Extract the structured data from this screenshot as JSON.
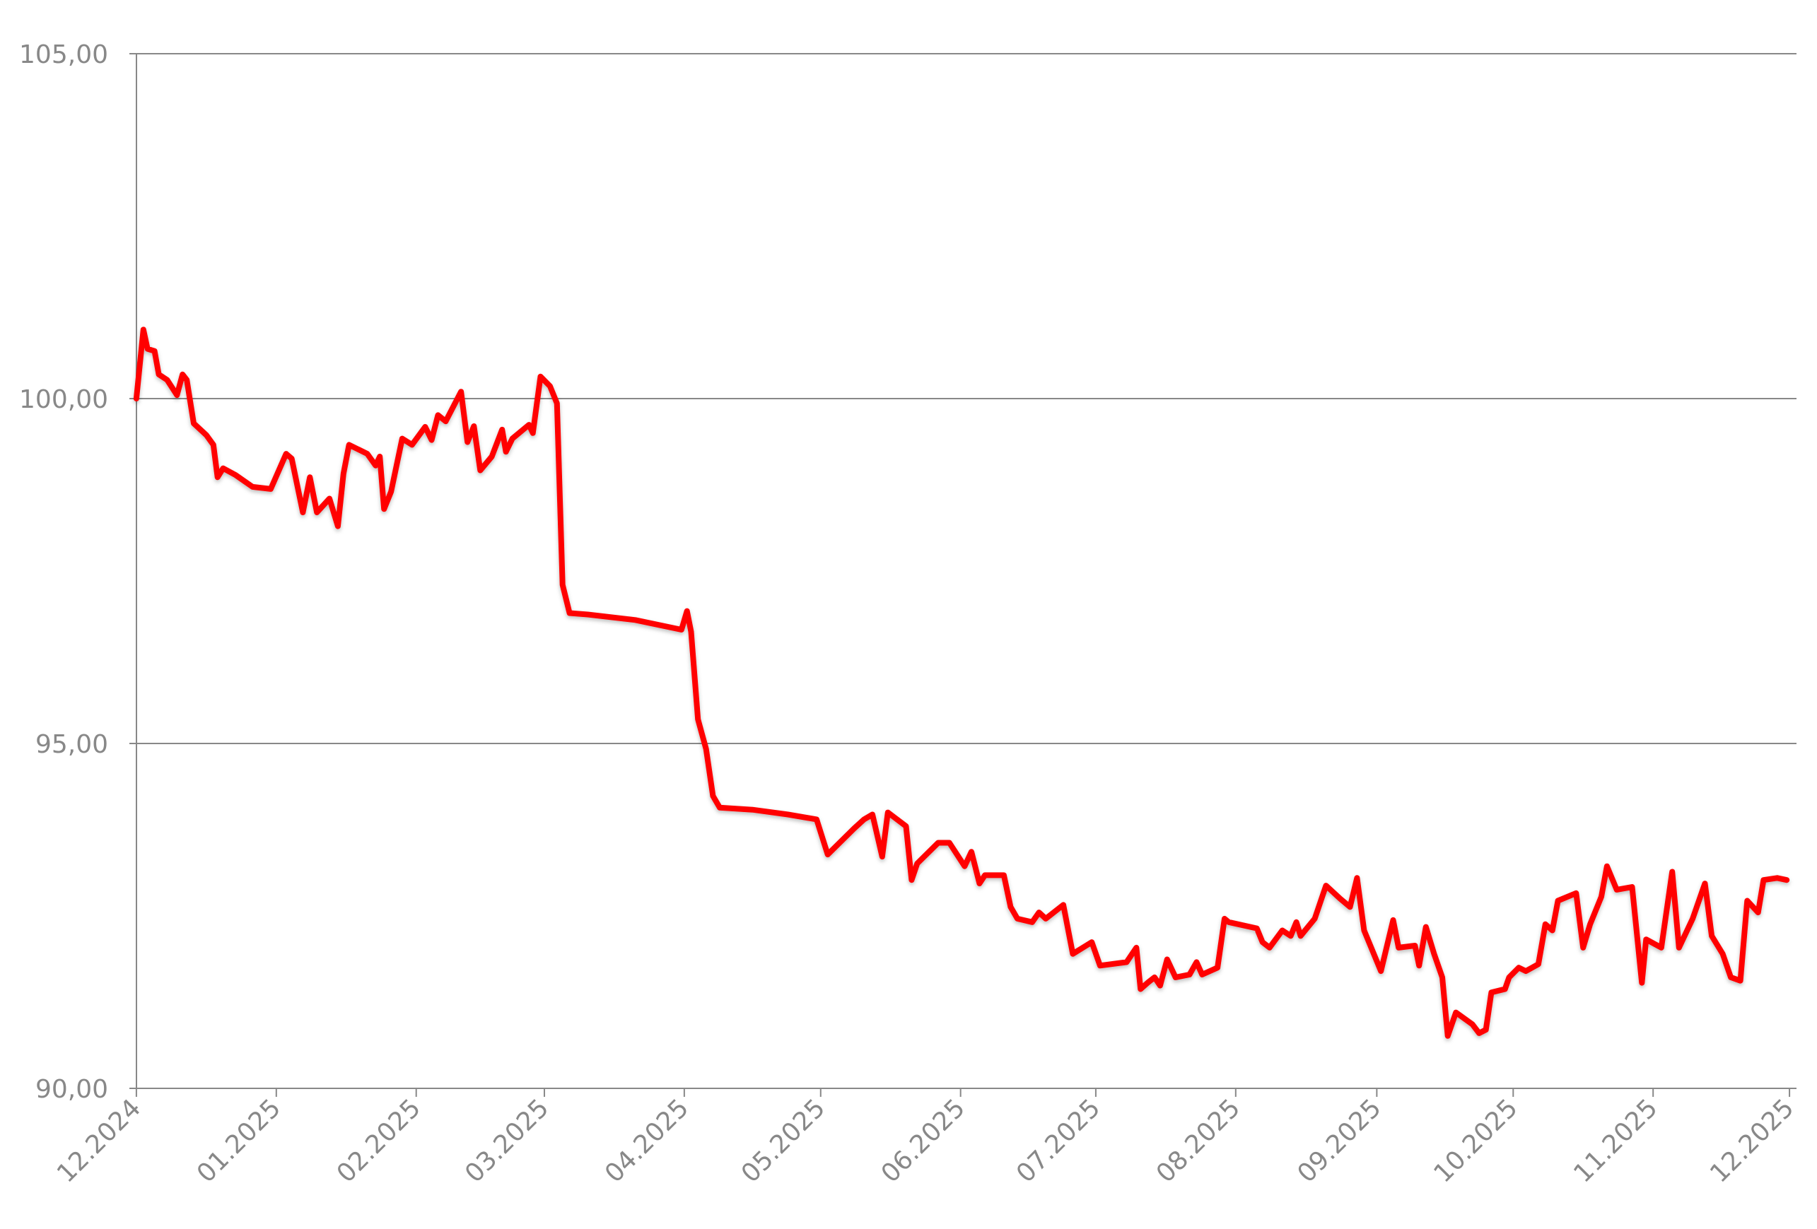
{
  "chart_data": {
    "type": "line",
    "color": "#ff0000",
    "grid": true,
    "x": [
      0,
      0.05,
      0.08,
      0.13,
      0.16,
      0.22,
      0.29,
      0.33,
      0.36,
      0.41,
      0.5,
      0.55,
      0.58,
      0.62,
      0.71,
      0.83,
      0.96,
      1.07,
      1.11,
      1.19,
      1.24,
      1.29,
      1.38,
      1.44,
      1.48,
      1.52,
      1.65,
      1.71,
      1.74,
      1.77,
      1.82,
      1.9,
      1.97,
      2.07,
      2.12,
      2.17,
      2.23,
      2.35,
      2.4,
      2.45,
      2.5,
      2.59,
      2.67,
      2.7,
      2.75,
      2.88,
      2.91,
      2.97,
      3.04,
      3.09,
      3.13,
      3.18,
      3.31,
      3.65,
      3.98,
      4.02,
      4.05,
      4.1,
      4.16,
      4.21,
      4.26,
      4.5,
      4.76,
      4.97,
      5.05,
      5.12,
      5.24,
      5.31,
      5.37,
      5.44,
      5.48,
      5.61,
      5.65,
      5.69,
      5.84,
      5.92,
      6.03,
      6.08,
      6.14,
      6.18,
      6.32,
      6.37,
      6.42,
      6.53,
      6.58,
      6.63,
      6.76,
      6.83,
      6.97,
      7.03,
      7.22,
      7.29,
      7.32,
      7.37,
      7.42,
      7.46,
      7.51,
      7.57,
      7.67,
      7.72,
      7.76,
      7.87,
      7.92,
      7.95,
      8.15,
      8.19,
      8.24,
      8.33,
      8.39,
      8.43,
      8.46,
      8.56,
      8.64,
      8.74,
      8.81,
      8.86,
      8.91,
      9.03,
      9.12,
      9.16,
      9.28,
      9.31,
      9.36,
      9.42,
      9.48,
      9.52,
      9.58,
      9.7,
      9.75,
      9.8,
      9.84,
      9.94,
      9.97,
      10.04,
      10.09,
      10.18,
      10.23,
      10.28,
      10.32,
      10.45,
      10.5,
      10.55,
      10.63,
      10.67,
      10.74,
      10.85,
      10.92,
      10.95,
      11.06,
      11.14,
      11.19,
      11.29,
      11.38,
      11.43,
      11.51,
      11.57,
      11.64,
      11.69,
      11.77,
      11.81,
      11.91,
      11.98
    ],
    "values": [
      100.0,
      101.0,
      100.72,
      100.69,
      100.35,
      100.27,
      100.05,
      100.35,
      100.27,
      99.64,
      99.47,
      99.33,
      98.86,
      98.99,
      98.89,
      98.72,
      98.69,
      99.2,
      99.13,
      98.35,
      98.86,
      98.35,
      98.55,
      98.15,
      98.91,
      99.33,
      99.2,
      99.03,
      99.16,
      98.4,
      98.65,
      99.42,
      99.33,
      99.59,
      99.4,
      99.76,
      99.67,
      100.1,
      99.37,
      99.6,
      98.96,
      99.16,
      99.55,
      99.23,
      99.42,
      99.62,
      99.5,
      100.32,
      100.18,
      99.93,
      97.3,
      96.89,
      96.87,
      96.79,
      96.65,
      96.92,
      96.62,
      95.35,
      94.92,
      94.24,
      94.07,
      94.04,
      93.97,
      93.9,
      93.39,
      93.53,
      93.77,
      93.9,
      93.97,
      93.36,
      94.0,
      93.8,
      93.02,
      93.26,
      93.56,
      93.56,
      93.22,
      93.43,
      92.97,
      93.09,
      93.09,
      92.63,
      92.46,
      92.41,
      92.55,
      92.46,
      92.66,
      91.95,
      92.12,
      91.78,
      91.83,
      92.04,
      91.44,
      91.53,
      91.61,
      91.49,
      91.87,
      91.61,
      91.65,
      91.83,
      91.65,
      91.75,
      92.46,
      92.41,
      92.32,
      92.12,
      92.04,
      92.29,
      92.21,
      92.41,
      92.21,
      92.46,
      92.94,
      92.75,
      92.63,
      93.05,
      92.29,
      91.7,
      92.44,
      92.04,
      92.07,
      91.78,
      92.34,
      91.95,
      91.61,
      90.76,
      91.1,
      90.93,
      90.8,
      90.85,
      91.39,
      91.44,
      91.61,
      91.75,
      91.7,
      91.8,
      92.38,
      92.29,
      92.72,
      92.83,
      92.04,
      92.38,
      92.78,
      93.22,
      92.88,
      92.92,
      91.53,
      92.16,
      92.04,
      93.14,
      92.04,
      92.46,
      92.97,
      92.21,
      91.95,
      91.61,
      91.56,
      92.72,
      92.55,
      93.02,
      93.05,
      93.02
    ],
    "xlim": [
      0,
      12
    ],
    "xticks": [
      {
        "value": 0,
        "label": "12.2024"
      },
      {
        "value": 1,
        "label": "01.2025"
      },
      {
        "value": 2,
        "label": "02.2025"
      },
      {
        "value": 3,
        "label": "03.2025"
      },
      {
        "value": 4,
        "label": "04.2025"
      },
      {
        "value": 5,
        "label": "05.2025"
      },
      {
        "value": 6,
        "label": "06.2025"
      },
      {
        "value": 7,
        "label": "07.2025"
      },
      {
        "value": 8,
        "label": "08.2025"
      },
      {
        "value": 9,
        "label": "09.2025"
      },
      {
        "value": 10,
        "label": "10.2025"
      },
      {
        "value": 11,
        "label": "11.2025"
      },
      {
        "value": 12,
        "label": "12.2025"
      }
    ],
    "ylim": [
      90,
      105
    ],
    "yticks": [
      {
        "value": 90,
        "label": "90,00"
      },
      {
        "value": 95,
        "label": "95,00"
      },
      {
        "value": 100,
        "label": "100,00"
      },
      {
        "value": 105,
        "label": "105,00"
      }
    ]
  }
}
